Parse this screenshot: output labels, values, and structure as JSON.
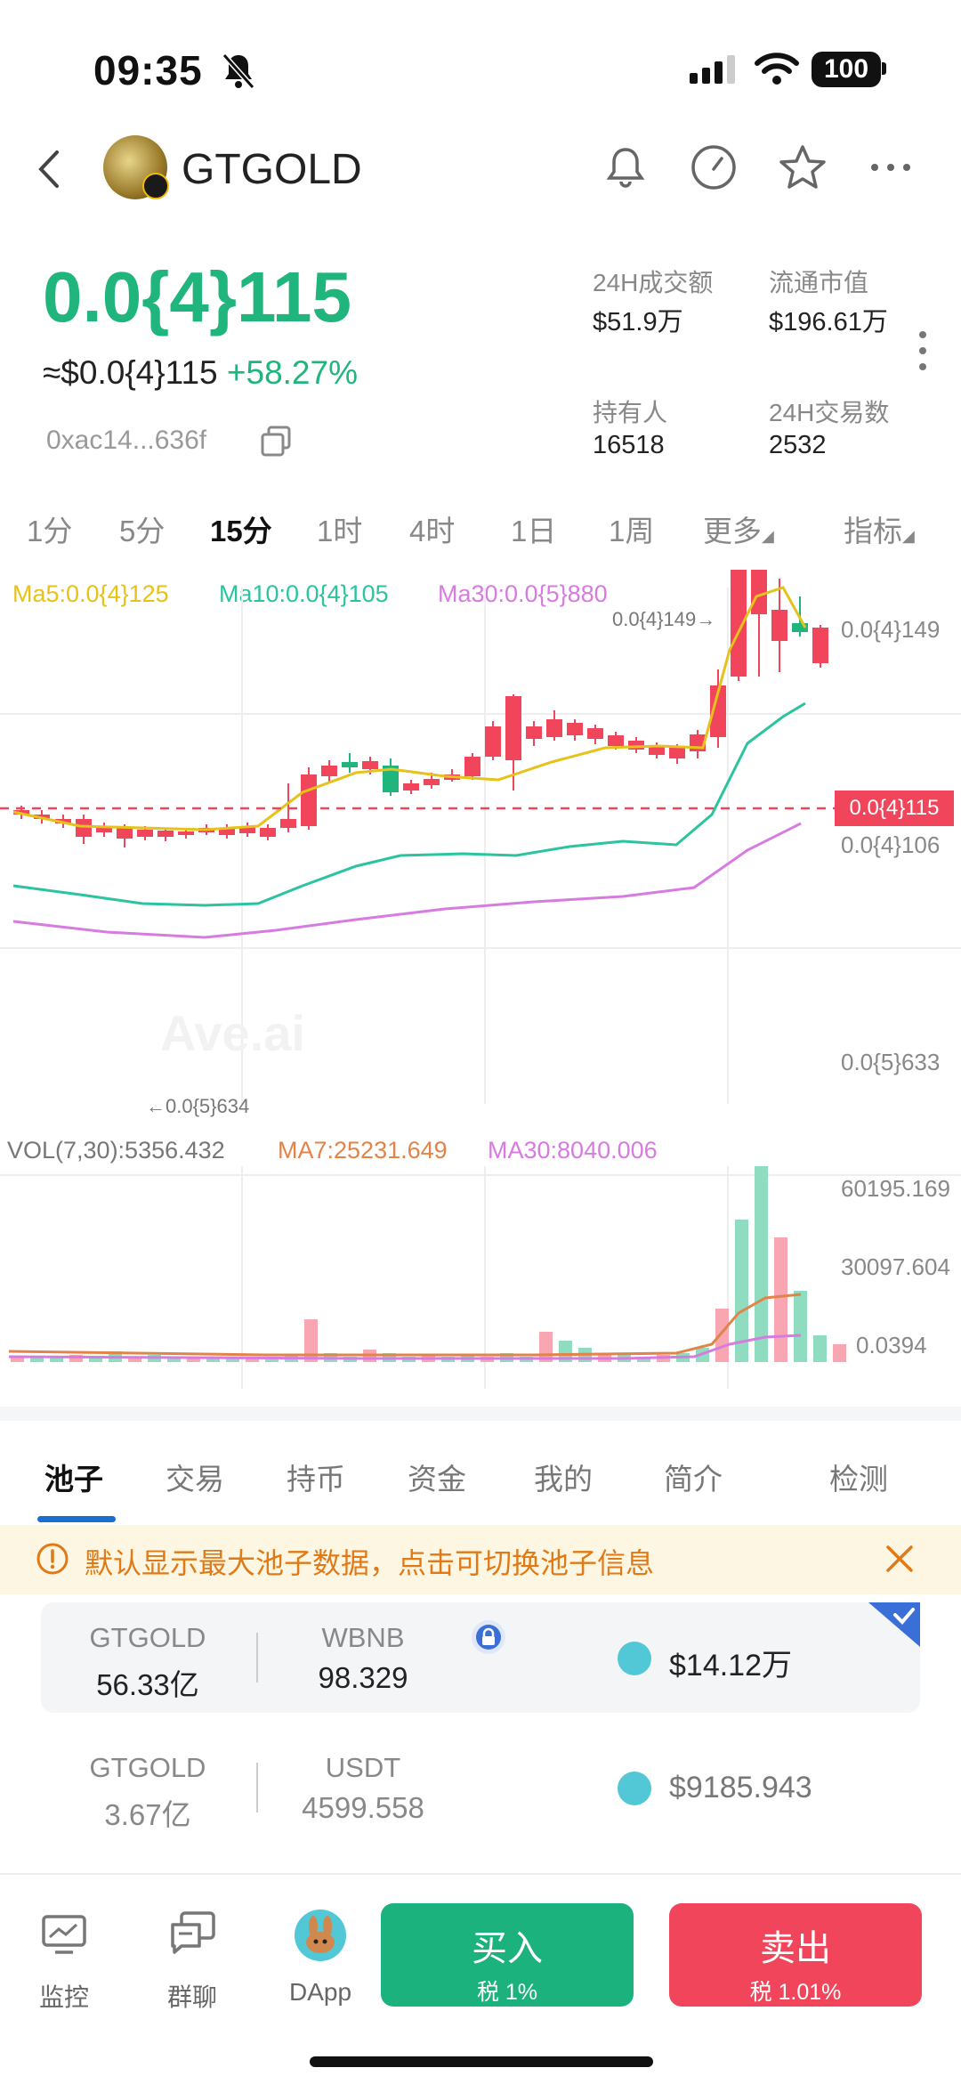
{
  "status_bar": {
    "time": "09:35",
    "battery": "100"
  },
  "header": {
    "title": "GTGOLD"
  },
  "price": {
    "main": "0.0{4}115",
    "usd_approx": "≈$0.0{4}115",
    "change": "+58.27%",
    "address": "0xac14...636f"
  },
  "stats": {
    "volume_24h_label": "24H成交额",
    "volume_24h": "$51.9万",
    "circ_mcap_label": "流通市值",
    "circ_mcap": "$196.61万",
    "holders_label": "持有人",
    "holders": "16518",
    "tx_24h_label": "24H交易数",
    "tx_24h": "2532"
  },
  "timeframes": [
    "1分",
    "5分",
    "15分",
    "1时",
    "4时",
    "1日",
    "1周",
    "更多",
    "指标"
  ],
  "timeframe_active": "15分",
  "chart_legend": {
    "ma5": "Ma5:0.0{4}125",
    "ma10": "Ma10:0.0{4}105",
    "ma30": "Ma30:0.0{5}880"
  },
  "chart_labels": {
    "y_top": "0.0{4}149",
    "y_mid": "0.0{4}106",
    "y_low": "0.0{5}633",
    "current": "0.0{4}115",
    "high_marker": "0.0{4}149→",
    "low_marker": "←0.0{5}634"
  },
  "vol_legend": {
    "vol": "VOL(7,30):5356.432",
    "ma7": "MA7:25231.649",
    "ma30": "MA30:8040.006"
  },
  "vol_axis": {
    "top": "60195.169",
    "mid": "30097.604",
    "low": "0.0394"
  },
  "colors": {
    "up": "#1fb57c",
    "down": "#f0455a",
    "ma5": "#e6c21a",
    "ma10": "#2cc3a0",
    "ma30": "#d77be0",
    "vol_ma7": "#e2844a"
  },
  "chart_data": {
    "type": "line",
    "title": "",
    "series": [
      {
        "name": "Ma5",
        "values": []
      },
      {
        "name": "Ma10",
        "values": []
      },
      {
        "name": "Ma30",
        "values": []
      }
    ],
    "ylim_labels": [
      "0.0{5}633",
      "0.0{4}106",
      "0.0{4}149"
    ],
    "current_price": "0.0{4}115"
  },
  "bottom_tabs": [
    "池子",
    "交易",
    "持币",
    "资金",
    "我的",
    "简介",
    "检测"
  ],
  "bottom_tab_active": "池子",
  "notice": "默认显示最大池子数据，点击可切换池子信息",
  "pools": [
    {
      "token": "GTGOLD",
      "token_amount": "56.33亿",
      "quote": "WBNB",
      "quote_amount": "98.329",
      "usd": "$14.12万"
    },
    {
      "token": "GTGOLD",
      "token_amount": "3.67亿",
      "quote": "USDT",
      "quote_amount": "4599.558",
      "usd": "$9185.943"
    }
  ],
  "nav": {
    "monitor": "监控",
    "group": "群聊",
    "dapp": "DApp"
  },
  "buy": {
    "label": "买入",
    "tax": "税 1%"
  },
  "sell": {
    "label": "卖出",
    "tax": "税 1.01%"
  }
}
